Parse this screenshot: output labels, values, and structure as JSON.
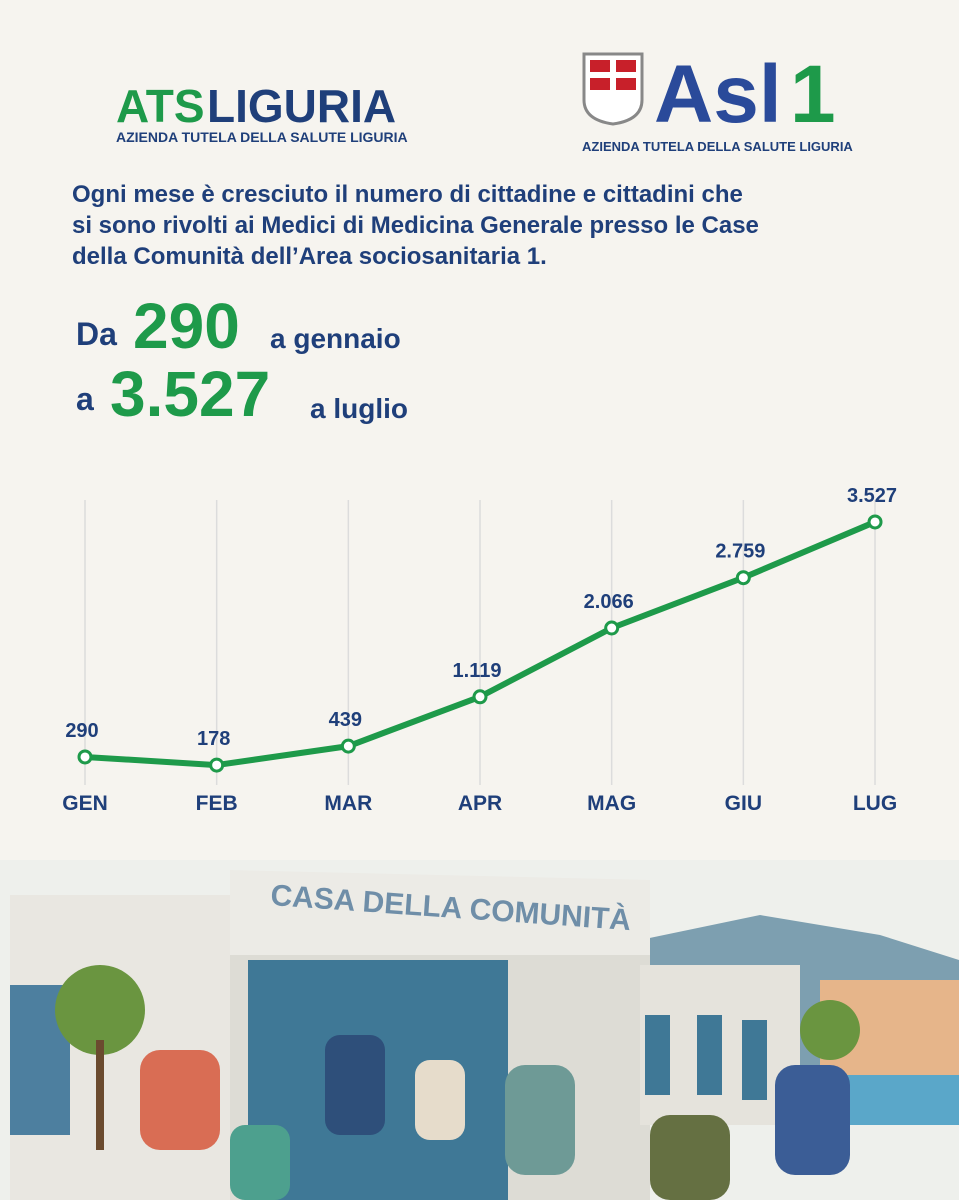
{
  "header": {
    "left_logo": {
      "brand_a": "ATS",
      "brand_b": "LIGURIA",
      "subtitle": "AZIENDA TUTELA DELLA SALUTE LIGURIA"
    },
    "right_logo": {
      "brand_a": "Asl",
      "brand_b": "1",
      "subtitle": "AZIENDA TUTELA DELLA SALUTE LIGURIA"
    }
  },
  "intro": {
    "lines": [
      "Ogni mese è cresciuto il numero di cittadine e cittadini che",
      "si sono rivolti ai Medici di Medicina Generale presso le Case",
      "della Comunità dell’Area sociosanitaria 1."
    ]
  },
  "highlight": {
    "from_prefix": "Da",
    "from_value": "290",
    "from_suffix": "a gennaio",
    "to_prefix": "a",
    "to_value": "3.527",
    "to_suffix": "a luglio"
  },
  "chart_data": {
    "type": "line",
    "categories": [
      "GEN",
      "FEB",
      "MAR",
      "APR",
      "MAG",
      "GIU",
      "LUG"
    ],
    "series": [
      {
        "name": null,
        "color": "#1e9a4a",
        "values": [
          290,
          178,
          439,
          1119,
          2066,
          2759,
          3527
        ],
        "value_labels": [
          "290",
          "178",
          "439",
          "1.119",
          "2.066",
          "2.759",
          "3.527"
        ]
      }
    ],
    "grid": true
  },
  "illustration": {
    "sign": "CASA DELLA COMUNITÀ"
  }
}
